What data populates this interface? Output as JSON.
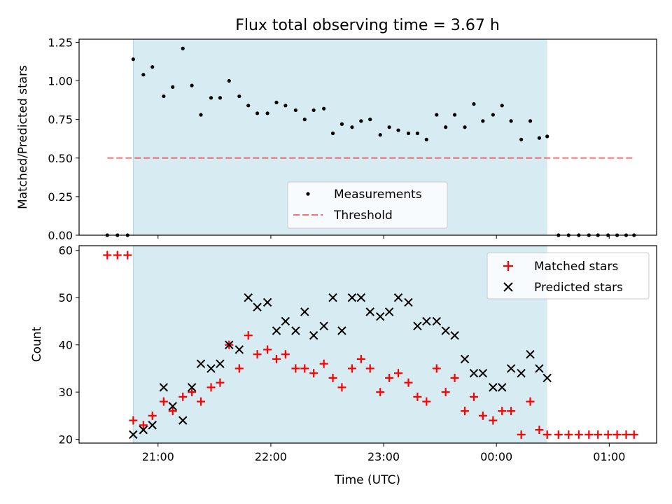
{
  "chart_data": [
    {
      "type": "scatter",
      "title": "Flux total observing time = 3.67 h",
      "xlabel": "",
      "ylabel": "Matched/Predicted stars",
      "ylim": [
        0,
        1.27
      ],
      "yticks": [
        "0.00",
        "0.25",
        "0.50",
        "0.75",
        "1.00",
        "1.25"
      ],
      "ytick_values": [
        0,
        0.25,
        0.5,
        0.75,
        1.0,
        1.25
      ],
      "xlim_hours": [
        20.3,
        25.42
      ],
      "xtick_hours": [
        21,
        22,
        23,
        24,
        25
      ],
      "shaded_interval_hours": [
        20.78,
        24.45
      ],
      "shade_color": "#add8e6",
      "legend_position": "lower center",
      "series": [
        {
          "name": "Measurements",
          "style": "dots",
          "color": "#000000",
          "x": [
            20.55,
            20.64,
            20.73,
            20.78,
            20.87,
            20.95,
            21.05,
            21.13,
            21.22,
            21.3,
            21.38,
            21.47,
            21.55,
            21.63,
            21.72,
            21.8,
            21.88,
            21.97,
            22.05,
            22.13,
            22.22,
            22.3,
            22.38,
            22.47,
            22.55,
            22.63,
            22.72,
            22.8,
            22.88,
            22.97,
            23.05,
            23.13,
            23.22,
            23.3,
            23.38,
            23.47,
            23.55,
            23.63,
            23.72,
            23.8,
            23.88,
            23.97,
            24.05,
            24.13,
            24.22,
            24.3,
            24.38,
            24.45,
            24.55,
            24.64,
            24.73,
            24.82,
            24.9,
            24.99,
            25.07,
            25.15,
            25.22
          ],
          "y": [
            0,
            0,
            0,
            1.14,
            1.04,
            1.09,
            0.9,
            0.96,
            1.21,
            0.97,
            0.78,
            0.89,
            0.89,
            1.0,
            0.9,
            0.84,
            0.79,
            0.79,
            0.86,
            0.84,
            0.81,
            0.75,
            0.81,
            0.82,
            0.66,
            0.72,
            0.7,
            0.74,
            0.75,
            0.65,
            0.7,
            0.68,
            0.66,
            0.66,
            0.62,
            0.78,
            0.7,
            0.78,
            0.7,
            0.85,
            0.74,
            0.78,
            0.84,
            0.74,
            0.62,
            0.74,
            0.63,
            0.64,
            0,
            0,
            0,
            0,
            0,
            0,
            0,
            0,
            0
          ]
        },
        {
          "name": "Threshold",
          "style": "dashed",
          "color": "#ff0000",
          "x": [
            20.55,
            25.22
          ],
          "y": [
            0.5,
            0.5
          ]
        }
      ]
    },
    {
      "type": "scatter",
      "title": "",
      "xlabel": "Time (UTC)",
      "ylabel": "Count",
      "ylim": [
        19.2,
        61
      ],
      "yticks": [
        "20",
        "30",
        "40",
        "50",
        "60"
      ],
      "ytick_values": [
        20,
        30,
        40,
        50,
        60
      ],
      "xlim_hours": [
        20.3,
        25.42
      ],
      "xtick_hours": [
        21,
        22,
        23,
        24,
        25
      ],
      "xticks": [
        "21:00",
        "22:00",
        "23:00",
        "00:00",
        "01:00"
      ],
      "shaded_interval_hours": [
        20.78,
        24.45
      ],
      "shade_color": "#add8e6",
      "legend_position": "upper right",
      "series": [
        {
          "name": "Matched stars",
          "style": "plus",
          "color": "#ff0000",
          "x": [
            20.55,
            20.64,
            20.73,
            20.78,
            20.87,
            20.95,
            21.05,
            21.13,
            21.22,
            21.3,
            21.38,
            21.47,
            21.55,
            21.63,
            21.72,
            21.8,
            21.88,
            21.97,
            22.05,
            22.13,
            22.22,
            22.3,
            22.38,
            22.47,
            22.55,
            22.63,
            22.72,
            22.8,
            22.88,
            22.97,
            23.05,
            23.13,
            23.22,
            23.3,
            23.38,
            23.47,
            23.55,
            23.63,
            23.72,
            23.8,
            23.88,
            23.97,
            24.05,
            24.13,
            24.22,
            24.3,
            24.38,
            24.45,
            24.55,
            24.64,
            24.73,
            24.82,
            24.9,
            24.99,
            25.07,
            25.15,
            25.22
          ],
          "y": [
            59,
            59,
            59,
            24,
            23,
            25,
            28,
            26,
            29,
            30,
            28,
            31,
            32,
            40,
            35,
            42,
            38,
            39,
            37,
            38,
            35,
            35,
            34,
            36,
            33,
            31,
            35,
            37,
            35,
            30,
            33,
            34,
            32,
            29,
            28,
            35,
            30,
            33,
            26,
            29,
            25,
            24,
            26,
            26,
            21,
            28,
            22,
            21,
            21,
            21,
            21,
            21,
            21,
            21,
            21,
            21,
            21
          ]
        },
        {
          "name": "Predicted stars",
          "style": "x",
          "color": "#000000",
          "x": [
            20.78,
            20.87,
            20.95,
            21.05,
            21.13,
            21.22,
            21.3,
            21.38,
            21.47,
            21.55,
            21.63,
            21.72,
            21.8,
            21.88,
            21.97,
            22.05,
            22.13,
            22.22,
            22.3,
            22.38,
            22.47,
            22.55,
            22.63,
            22.72,
            22.8,
            22.88,
            22.97,
            23.05,
            23.13,
            23.22,
            23.3,
            23.38,
            23.47,
            23.55,
            23.63,
            23.72,
            23.8,
            23.88,
            23.97,
            24.05,
            24.13,
            24.22,
            24.3,
            24.38,
            24.45
          ],
          "y": [
            21,
            22,
            23,
            31,
            27,
            24,
            31,
            36,
            35,
            36,
            40,
            39,
            50,
            48,
            49,
            43,
            45,
            43,
            47,
            42,
            44,
            50,
            43,
            50,
            50,
            47,
            46,
            47,
            50,
            49,
            44,
            45,
            45,
            43,
            42,
            37,
            34,
            34,
            31,
            31,
            35,
            34,
            38,
            35,
            33
          ]
        }
      ]
    }
  ]
}
